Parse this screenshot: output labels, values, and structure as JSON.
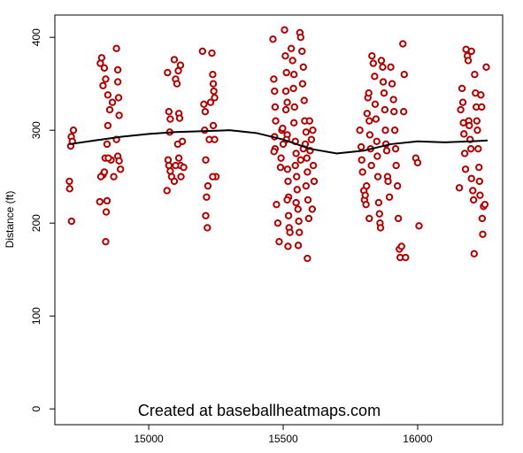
{
  "chart_data": {
    "type": "scatter",
    "y_label": "Distance (ft)",
    "annotation": "Created at baseballheatmaps.com",
    "xlim": [
      14651,
      16316
    ],
    "ylim": [
      -17,
      424
    ],
    "xticks": [
      15000,
      15500,
      16000
    ],
    "yticks": [
      0,
      100,
      200,
      300,
      400
    ],
    "point_color": "#b00000",
    "line_color": "#000000",
    "points": [
      [
        14705,
        245
      ],
      [
        14706,
        237
      ],
      [
        14710,
        283
      ],
      [
        14712,
        293
      ],
      [
        14720,
        300
      ],
      [
        14713,
        202
      ],
      [
        14716,
        288
      ],
      [
        14820,
        372
      ],
      [
        14825,
        378
      ],
      [
        14830,
        348
      ],
      [
        14835,
        367
      ],
      [
        14840,
        355
      ],
      [
        14848,
        338
      ],
      [
        14855,
        322
      ],
      [
        14848,
        305
      ],
      [
        14845,
        285
      ],
      [
        14838,
        270
      ],
      [
        14830,
        252
      ],
      [
        14822,
        250
      ],
      [
        14818,
        223
      ],
      [
        14845,
        224
      ],
      [
        14842,
        212
      ],
      [
        14840,
        180
      ],
      [
        14860,
        268
      ],
      [
        14870,
        250
      ],
      [
        14880,
        388
      ],
      [
        14885,
        365
      ],
      [
        14885,
        352
      ],
      [
        14888,
        335
      ],
      [
        14890,
        316
      ],
      [
        14880,
        290
      ],
      [
        14885,
        272
      ],
      [
        14890,
        267
      ],
      [
        14895,
        258
      ],
      [
        14850,
        270
      ],
      [
        14865,
        330
      ],
      [
        14835,
        255
      ],
      [
        15070,
        362
      ],
      [
        15075,
        320
      ],
      [
        15080,
        312
      ],
      [
        15078,
        298
      ],
      [
        15072,
        268
      ],
      [
        15075,
        262
      ],
      [
        15080,
        256
      ],
      [
        15085,
        250
      ],
      [
        15068,
        235
      ],
      [
        15095,
        376
      ],
      [
        15100,
        355
      ],
      [
        15105,
        350
      ],
      [
        15110,
        364
      ],
      [
        15118,
        370
      ],
      [
        15112,
        318
      ],
      [
        15115,
        313
      ],
      [
        15108,
        285
      ],
      [
        15112,
        270
      ],
      [
        15118,
        262
      ],
      [
        15120,
        250
      ],
      [
        15125,
        288
      ],
      [
        15130,
        260
      ],
      [
        15100,
        262
      ],
      [
        15095,
        245
      ],
      [
        15200,
        385
      ],
      [
        15205,
        328
      ],
      [
        15210,
        320
      ],
      [
        15208,
        300
      ],
      [
        15212,
        268
      ],
      [
        15215,
        228
      ],
      [
        15212,
        208
      ],
      [
        15218,
        195
      ],
      [
        15220,
        240
      ],
      [
        15225,
        290
      ],
      [
        15235,
        383
      ],
      [
        15238,
        360
      ],
      [
        15240,
        350
      ],
      [
        15242,
        342
      ],
      [
        15245,
        335
      ],
      [
        15240,
        305
      ],
      [
        15245,
        290
      ],
      [
        15250,
        250
      ],
      [
        15238,
        250
      ],
      [
        15230,
        330
      ],
      [
        15462,
        398
      ],
      [
        15465,
        355
      ],
      [
        15468,
        342
      ],
      [
        15470,
        325
      ],
      [
        15472,
        310
      ],
      [
        15468,
        293
      ],
      [
        15470,
        280
      ],
      [
        15466,
        277
      ],
      [
        15475,
        220
      ],
      [
        15480,
        200
      ],
      [
        15485,
        180
      ],
      [
        15490,
        260
      ],
      [
        15492,
        270
      ],
      [
        15495,
        300
      ],
      [
        15498,
        302
      ],
      [
        15500,
        285
      ],
      [
        15505,
        408
      ],
      [
        15508,
        380
      ],
      [
        15512,
        362
      ],
      [
        15510,
        342
      ],
      [
        15515,
        330
      ],
      [
        15510,
        322
      ],
      [
        15515,
        295
      ],
      [
        15512,
        290
      ],
      [
        15516,
        258
      ],
      [
        15518,
        245
      ],
      [
        15520,
        228
      ],
      [
        15515,
        225
      ],
      [
        15520,
        208
      ],
      [
        15522,
        195
      ],
      [
        15518,
        175
      ],
      [
        15525,
        190
      ],
      [
        15530,
        388
      ],
      [
        15535,
        375
      ],
      [
        15540,
        360
      ],
      [
        15538,
        345
      ],
      [
        15542,
        325
      ],
      [
        15540,
        308
      ],
      [
        15545,
        288
      ],
      [
        15548,
        275
      ],
      [
        15545,
        262
      ],
      [
        15550,
        250
      ],
      [
        15552,
        236
      ],
      [
        15548,
        222
      ],
      [
        15555,
        215
      ],
      [
        15558,
        202
      ],
      [
        15560,
        190
      ],
      [
        15556,
        176
      ],
      [
        15562,
        405
      ],
      [
        15565,
        400
      ],
      [
        15570,
        385
      ],
      [
        15575,
        368
      ],
      [
        15572,
        350
      ],
      [
        15578,
        332
      ],
      [
        15580,
        310
      ],
      [
        15585,
        298
      ],
      [
        15582,
        285
      ],
      [
        15588,
        270
      ],
      [
        15590,
        255
      ],
      [
        15585,
        240
      ],
      [
        15592,
        225
      ],
      [
        15595,
        205
      ],
      [
        15590,
        162
      ],
      [
        15600,
        278
      ],
      [
        15605,
        290
      ],
      [
        15610,
        300
      ],
      [
        15612,
        262
      ],
      [
        15615,
        245
      ],
      [
        15608,
        215
      ],
      [
        15598,
        310
      ],
      [
        15575,
        280
      ],
      [
        15565,
        268
      ],
      [
        15785,
        300
      ],
      [
        15790,
        282
      ],
      [
        15792,
        268
      ],
      [
        15795,
        255
      ],
      [
        15800,
        235
      ],
      [
        15802,
        225
      ],
      [
        15805,
        230
      ],
      [
        15808,
        220
      ],
      [
        15810,
        240
      ],
      [
        15812,
        318
      ],
      [
        15815,
        335
      ],
      [
        15818,
        340
      ],
      [
        15820,
        310
      ],
      [
        15822,
        295
      ],
      [
        15825,
        280
      ],
      [
        15828,
        262
      ],
      [
        15820,
        205
      ],
      [
        15830,
        380
      ],
      [
        15835,
        372
      ],
      [
        15840,
        358
      ],
      [
        15842,
        328
      ],
      [
        15845,
        312
      ],
      [
        15848,
        288
      ],
      [
        15850,
        272
      ],
      [
        15852,
        250
      ],
      [
        15855,
        222
      ],
      [
        15858,
        210
      ],
      [
        15860,
        200
      ],
      [
        15862,
        195
      ],
      [
        15865,
        375
      ],
      [
        15870,
        368
      ],
      [
        15872,
        352
      ],
      [
        15875,
        340
      ],
      [
        15878,
        322
      ],
      [
        15880,
        300
      ],
      [
        15882,
        285
      ],
      [
        15885,
        278
      ],
      [
        15888,
        250
      ],
      [
        15890,
        245
      ],
      [
        15895,
        228
      ],
      [
        15900,
        368
      ],
      [
        15905,
        350
      ],
      [
        15910,
        333
      ],
      [
        15912,
        320
      ],
      [
        15915,
        300
      ],
      [
        15918,
        280
      ],
      [
        15920,
        262
      ],
      [
        15925,
        240
      ],
      [
        15928,
        205
      ],
      [
        15932,
        172
      ],
      [
        15935,
        163
      ],
      [
        15945,
        393
      ],
      [
        15950,
        360
      ],
      [
        15948,
        320
      ],
      [
        15955,
        163
      ],
      [
        15940,
        175
      ],
      [
        15993,
        270
      ],
      [
        16000,
        265
      ],
      [
        16005,
        197
      ],
      [
        16155,
        238
      ],
      [
        16160,
        322
      ],
      [
        16165,
        345
      ],
      [
        16168,
        330
      ],
      [
        16170,
        308
      ],
      [
        16172,
        296
      ],
      [
        16175,
        275
      ],
      [
        16178,
        258
      ],
      [
        16180,
        387
      ],
      [
        16185,
        380
      ],
      [
        16188,
        375
      ],
      [
        16190,
        310
      ],
      [
        16192,
        305
      ],
      [
        16195,
        290
      ],
      [
        16198,
        280
      ],
      [
        16200,
        248
      ],
      [
        16205,
        235
      ],
      [
        16208,
        225
      ],
      [
        16210,
        167
      ],
      [
        16212,
        360
      ],
      [
        16215,
        340
      ],
      [
        16218,
        325
      ],
      [
        16220,
        310
      ],
      [
        16222,
        300
      ],
      [
        16225,
        280
      ],
      [
        16228,
        260
      ],
      [
        16230,
        245
      ],
      [
        16232,
        230
      ],
      [
        16235,
        338
      ],
      [
        16238,
        325
      ],
      [
        16240,
        205
      ],
      [
        16242,
        188
      ],
      [
        16245,
        218
      ],
      [
        16255,
        368
      ],
      [
        16250,
        220
      ],
      [
        16200,
        385
      ]
    ],
    "trend": {
      "x": [
        14705,
        14800,
        14900,
        15000,
        15100,
        15200,
        15300,
        15400,
        15500,
        15600,
        15700,
        15800,
        15900,
        16000,
        16100,
        16200,
        16260
      ],
      "y": [
        285,
        289,
        293,
        296,
        298,
        299,
        300,
        297,
        290,
        280,
        275,
        278,
        285,
        288,
        287,
        288,
        289
      ]
    }
  }
}
